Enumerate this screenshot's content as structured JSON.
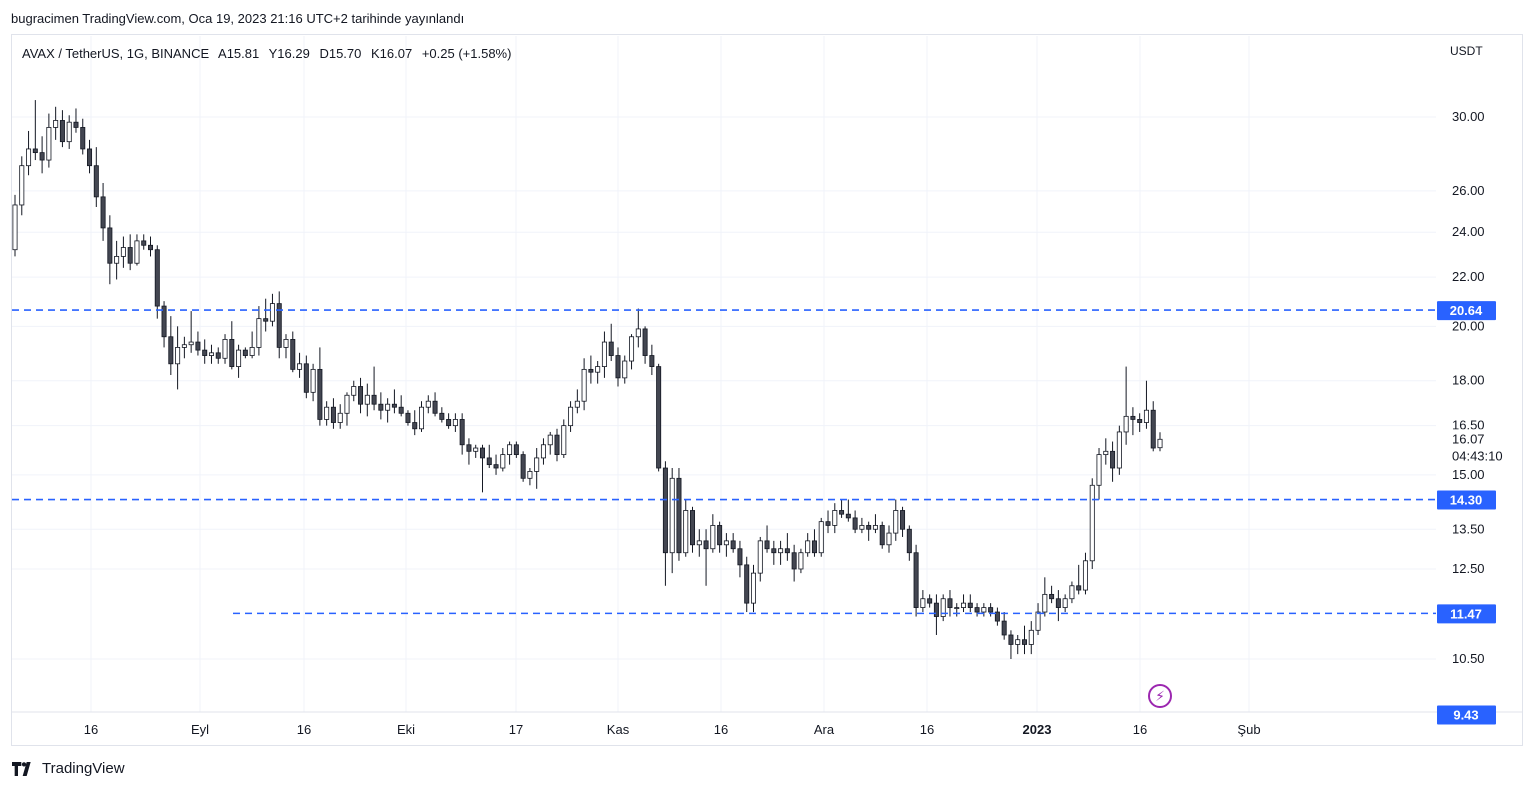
{
  "header": {
    "published": "bugracimen TradingView.com, Oca 19, 2023 21:16 UTC+2 tarihinde yayınlandı"
  },
  "legend": {
    "symbol": "AVAX / TetherUS, 1G, BINANCE",
    "open": "A15.81",
    "high": "Y16.29",
    "low": "D15.70",
    "close": "K16.07",
    "change": "+0.25 (+1.58%)"
  },
  "footer": {
    "brand": "TradingView"
  },
  "icons": {
    "logo": "tradingview-logo-icon",
    "flash": "lightning-bolt-icon"
  },
  "colors": {
    "level_line": "#2962ff",
    "level_badge": "#2962ff",
    "up_fill": "#ffffff",
    "down_fill": "#434651",
    "wick": "#131722"
  },
  "chart_data": {
    "type": "candlestick",
    "scale": "log",
    "currency": "USDT",
    "ylim": [
      9.2,
      33
    ],
    "y_ticks": [
      "30.00",
      "26.00",
      "24.00",
      "22.00",
      "20.00",
      "18.00",
      "16.50",
      "15.00",
      "13.50",
      "12.50",
      "10.50"
    ],
    "x_ticks": [
      "16",
      "Eyl",
      "16",
      "Eki",
      "17",
      "Kas",
      "16",
      "Ara",
      "16",
      "2023",
      "16",
      "Şub"
    ],
    "last_price": "16.07",
    "countdown": "04:43:10",
    "horizontal_levels": [
      {
        "value": 20.64,
        "label": "20.64"
      },
      {
        "value": 14.3,
        "label": "14.30"
      },
      {
        "value": 11.47,
        "label": "11.47"
      }
    ],
    "extra_badge": {
      "value": 9.43,
      "label": "9.43"
    },
    "candles": [
      {
        "o": 23.2,
        "h": 25.8,
        "l": 22.9,
        "c": 25.3
      },
      {
        "o": 25.3,
        "h": 27.8,
        "l": 24.8,
        "c": 27.3
      },
      {
        "o": 27.3,
        "h": 29.2,
        "l": 26.8,
        "c": 28.2
      },
      {
        "o": 28.2,
        "h": 31.0,
        "l": 27.6,
        "c": 28.0
      },
      {
        "o": 28.0,
        "h": 28.9,
        "l": 26.9,
        "c": 27.6
      },
      {
        "o": 27.6,
        "h": 30.2,
        "l": 27.2,
        "c": 29.4
      },
      {
        "o": 29.4,
        "h": 30.6,
        "l": 28.7,
        "c": 29.8
      },
      {
        "o": 29.8,
        "h": 30.4,
        "l": 28.3,
        "c": 28.6
      },
      {
        "o": 28.6,
        "h": 30.1,
        "l": 28.2,
        "c": 29.7
      },
      {
        "o": 29.7,
        "h": 30.5,
        "l": 29.1,
        "c": 29.4
      },
      {
        "o": 29.4,
        "h": 29.9,
        "l": 27.9,
        "c": 28.2
      },
      {
        "o": 28.2,
        "h": 28.7,
        "l": 26.9,
        "c": 27.3
      },
      {
        "o": 27.3,
        "h": 28.3,
        "l": 25.2,
        "c": 25.7
      },
      {
        "o": 25.7,
        "h": 26.4,
        "l": 23.6,
        "c": 24.2
      },
      {
        "o": 24.2,
        "h": 24.8,
        "l": 21.7,
        "c": 22.6
      },
      {
        "o": 22.6,
        "h": 23.6,
        "l": 21.9,
        "c": 22.9
      },
      {
        "o": 22.9,
        "h": 23.8,
        "l": 22.4,
        "c": 23.3
      },
      {
        "o": 23.3,
        "h": 23.9,
        "l": 22.3,
        "c": 22.6
      },
      {
        "o": 22.6,
        "h": 23.9,
        "l": 22.5,
        "c": 23.6
      },
      {
        "o": 23.6,
        "h": 23.9,
        "l": 23.2,
        "c": 23.4
      },
      {
        "o": 23.4,
        "h": 23.8,
        "l": 22.9,
        "c": 23.2
      },
      {
        "o": 23.2,
        "h": 23.4,
        "l": 20.3,
        "c": 20.8
      },
      {
        "o": 20.8,
        "h": 21.0,
        "l": 19.2,
        "c": 19.6
      },
      {
        "o": 19.6,
        "h": 20.4,
        "l": 18.2,
        "c": 18.6
      },
      {
        "o": 18.6,
        "h": 20.0,
        "l": 17.7,
        "c": 19.2
      },
      {
        "o": 19.2,
        "h": 19.6,
        "l": 18.8,
        "c": 19.3
      },
      {
        "o": 19.3,
        "h": 20.6,
        "l": 19.0,
        "c": 19.4
      },
      {
        "o": 19.4,
        "h": 19.8,
        "l": 18.9,
        "c": 19.1
      },
      {
        "o": 19.1,
        "h": 19.5,
        "l": 18.6,
        "c": 18.9
      },
      {
        "o": 18.9,
        "h": 19.3,
        "l": 18.6,
        "c": 19.0
      },
      {
        "o": 19.0,
        "h": 19.2,
        "l": 18.6,
        "c": 18.8
      },
      {
        "o": 18.8,
        "h": 19.7,
        "l": 18.6,
        "c": 19.5
      },
      {
        "o": 19.5,
        "h": 20.2,
        "l": 18.4,
        "c": 18.5
      },
      {
        "o": 18.5,
        "h": 19.3,
        "l": 18.1,
        "c": 19.1
      },
      {
        "o": 19.1,
        "h": 19.2,
        "l": 18.8,
        "c": 18.9
      },
      {
        "o": 18.9,
        "h": 19.8,
        "l": 18.8,
        "c": 19.2
      },
      {
        "o": 19.2,
        "h": 20.8,
        "l": 18.9,
        "c": 20.3
      },
      {
        "o": 20.3,
        "h": 21.1,
        "l": 19.8,
        "c": 20.2
      },
      {
        "o": 20.2,
        "h": 21.3,
        "l": 20.0,
        "c": 20.9
      },
      {
        "o": 20.9,
        "h": 21.4,
        "l": 18.8,
        "c": 19.2
      },
      {
        "o": 19.2,
        "h": 19.7,
        "l": 18.8,
        "c": 19.5
      },
      {
        "o": 19.5,
        "h": 19.8,
        "l": 18.3,
        "c": 18.4
      },
      {
        "o": 18.4,
        "h": 19.0,
        "l": 18.1,
        "c": 18.6
      },
      {
        "o": 18.6,
        "h": 18.9,
        "l": 17.4,
        "c": 17.6
      },
      {
        "o": 17.6,
        "h": 18.6,
        "l": 17.3,
        "c": 18.4
      },
      {
        "o": 18.4,
        "h": 19.2,
        "l": 16.5,
        "c": 16.7
      },
      {
        "o": 16.7,
        "h": 17.3,
        "l": 16.5,
        "c": 17.1
      },
      {
        "o": 17.1,
        "h": 17.4,
        "l": 16.4,
        "c": 16.6
      },
      {
        "o": 16.6,
        "h": 17.2,
        "l": 16.4,
        "c": 16.9
      },
      {
        "o": 16.9,
        "h": 17.6,
        "l": 16.5,
        "c": 17.5
      },
      {
        "o": 17.5,
        "h": 18.0,
        "l": 17.3,
        "c": 17.8
      },
      {
        "o": 17.8,
        "h": 18.1,
        "l": 16.9,
        "c": 17.2
      },
      {
        "o": 17.2,
        "h": 17.9,
        "l": 16.8,
        "c": 17.5
      },
      {
        "o": 17.5,
        "h": 18.5,
        "l": 17.0,
        "c": 17.2
      },
      {
        "o": 17.2,
        "h": 17.6,
        "l": 16.7,
        "c": 17.0
      },
      {
        "o": 17.0,
        "h": 17.4,
        "l": 16.6,
        "c": 17.2
      },
      {
        "o": 17.2,
        "h": 17.7,
        "l": 16.9,
        "c": 17.1
      },
      {
        "o": 17.1,
        "h": 17.5,
        "l": 16.8,
        "c": 16.9
      },
      {
        "o": 16.9,
        "h": 17.0,
        "l": 16.5,
        "c": 16.6
      },
      {
        "o": 16.6,
        "h": 17.0,
        "l": 16.2,
        "c": 16.4
      },
      {
        "o": 16.4,
        "h": 17.3,
        "l": 16.3,
        "c": 17.1
      },
      {
        "o": 17.1,
        "h": 17.5,
        "l": 16.9,
        "c": 17.3
      },
      {
        "o": 17.3,
        "h": 17.6,
        "l": 16.8,
        "c": 16.9
      },
      {
        "o": 16.9,
        "h": 17.1,
        "l": 16.6,
        "c": 16.7
      },
      {
        "o": 16.7,
        "h": 16.9,
        "l": 16.4,
        "c": 16.5
      },
      {
        "o": 16.5,
        "h": 16.9,
        "l": 16.3,
        "c": 16.7
      },
      {
        "o": 16.7,
        "h": 16.9,
        "l": 15.6,
        "c": 15.9
      },
      {
        "o": 15.9,
        "h": 16.1,
        "l": 15.3,
        "c": 15.7
      },
      {
        "o": 15.7,
        "h": 15.9,
        "l": 15.5,
        "c": 15.8
      },
      {
        "o": 15.8,
        "h": 15.9,
        "l": 14.5,
        "c": 15.5
      },
      {
        "o": 15.5,
        "h": 15.9,
        "l": 15.2,
        "c": 15.3
      },
      {
        "o": 15.3,
        "h": 15.6,
        "l": 15.0,
        "c": 15.2
      },
      {
        "o": 15.2,
        "h": 15.8,
        "l": 15.1,
        "c": 15.6
      },
      {
        "o": 15.6,
        "h": 16.0,
        "l": 15.3,
        "c": 15.9
      },
      {
        "o": 15.9,
        "h": 16.0,
        "l": 15.5,
        "c": 15.6
      },
      {
        "o": 15.6,
        "h": 15.7,
        "l": 14.8,
        "c": 14.9
      },
      {
        "o": 14.9,
        "h": 15.2,
        "l": 14.7,
        "c": 15.1
      },
      {
        "o": 15.1,
        "h": 15.8,
        "l": 14.6,
        "c": 15.5
      },
      {
        "o": 15.5,
        "h": 16.1,
        "l": 15.3,
        "c": 15.9
      },
      {
        "o": 15.9,
        "h": 16.3,
        "l": 15.6,
        "c": 16.2
      },
      {
        "o": 16.2,
        "h": 16.4,
        "l": 15.4,
        "c": 15.6
      },
      {
        "o": 15.6,
        "h": 16.7,
        "l": 15.5,
        "c": 16.5
      },
      {
        "o": 16.5,
        "h": 17.3,
        "l": 16.3,
        "c": 17.1
      },
      {
        "o": 17.1,
        "h": 17.7,
        "l": 16.9,
        "c": 17.3
      },
      {
        "o": 17.3,
        "h": 18.8,
        "l": 17.0,
        "c": 18.4
      },
      {
        "o": 18.4,
        "h": 18.9,
        "l": 17.9,
        "c": 18.3
      },
      {
        "o": 18.3,
        "h": 18.7,
        "l": 17.9,
        "c": 18.5
      },
      {
        "o": 18.5,
        "h": 19.8,
        "l": 18.1,
        "c": 19.4
      },
      {
        "o": 19.4,
        "h": 20.1,
        "l": 18.7,
        "c": 18.9
      },
      {
        "o": 18.9,
        "h": 19.2,
        "l": 17.8,
        "c": 18.1
      },
      {
        "o": 18.1,
        "h": 18.9,
        "l": 17.9,
        "c": 18.7
      },
      {
        "o": 18.7,
        "h": 19.7,
        "l": 18.4,
        "c": 19.6
      },
      {
        "o": 19.6,
        "h": 20.7,
        "l": 19.2,
        "c": 19.9
      },
      {
        "o": 19.9,
        "h": 20.0,
        "l": 18.6,
        "c": 18.9
      },
      {
        "o": 18.9,
        "h": 19.3,
        "l": 18.2,
        "c": 18.5
      },
      {
        "o": 18.5,
        "h": 18.6,
        "l": 15.1,
        "c": 15.2
      },
      {
        "o": 15.2,
        "h": 15.4,
        "l": 12.1,
        "c": 12.9
      },
      {
        "o": 12.9,
        "h": 15.2,
        "l": 12.4,
        "c": 14.9
      },
      {
        "o": 14.9,
        "h": 15.2,
        "l": 12.7,
        "c": 12.9
      },
      {
        "o": 12.9,
        "h": 14.3,
        "l": 12.8,
        "c": 14.0
      },
      {
        "o": 14.0,
        "h": 14.1,
        "l": 12.9,
        "c": 13.1
      },
      {
        "o": 13.1,
        "h": 13.5,
        "l": 12.8,
        "c": 13.2
      },
      {
        "o": 13.2,
        "h": 13.5,
        "l": 12.1,
        "c": 13.0
      },
      {
        "o": 13.0,
        "h": 13.9,
        "l": 12.9,
        "c": 13.6
      },
      {
        "o": 13.6,
        "h": 13.7,
        "l": 12.9,
        "c": 13.1
      },
      {
        "o": 13.1,
        "h": 13.4,
        "l": 12.8,
        "c": 13.2
      },
      {
        "o": 13.2,
        "h": 13.4,
        "l": 12.9,
        "c": 13.0
      },
      {
        "o": 13.0,
        "h": 13.2,
        "l": 12.3,
        "c": 12.6
      },
      {
        "o": 12.6,
        "h": 12.8,
        "l": 11.5,
        "c": 11.7
      },
      {
        "o": 11.7,
        "h": 12.6,
        "l": 11.5,
        "c": 12.4
      },
      {
        "o": 12.4,
        "h": 13.3,
        "l": 12.2,
        "c": 13.2
      },
      {
        "o": 13.2,
        "h": 13.6,
        "l": 12.9,
        "c": 13.0
      },
      {
        "o": 13.0,
        "h": 13.2,
        "l": 12.6,
        "c": 12.9
      },
      {
        "o": 12.9,
        "h": 13.2,
        "l": 12.6,
        "c": 13.0
      },
      {
        "o": 13.0,
        "h": 13.4,
        "l": 12.7,
        "c": 12.9
      },
      {
        "o": 12.9,
        "h": 13.1,
        "l": 12.2,
        "c": 12.5
      },
      {
        "o": 12.5,
        "h": 13.0,
        "l": 12.4,
        "c": 12.9
      },
      {
        "o": 12.9,
        "h": 13.4,
        "l": 12.8,
        "c": 13.2
      },
      {
        "o": 13.2,
        "h": 13.5,
        "l": 12.8,
        "c": 12.9
      },
      {
        "o": 12.9,
        "h": 13.8,
        "l": 12.8,
        "c": 13.7
      },
      {
        "o": 13.7,
        "h": 14.0,
        "l": 13.4,
        "c": 13.6
      },
      {
        "o": 13.6,
        "h": 14.2,
        "l": 13.4,
        "c": 14.0
      },
      {
        "o": 14.0,
        "h": 14.3,
        "l": 13.8,
        "c": 13.9
      },
      {
        "o": 13.9,
        "h": 14.3,
        "l": 13.7,
        "c": 13.8
      },
      {
        "o": 13.8,
        "h": 14.0,
        "l": 13.4,
        "c": 13.5
      },
      {
        "o": 13.5,
        "h": 13.8,
        "l": 13.4,
        "c": 13.6
      },
      {
        "o": 13.6,
        "h": 13.7,
        "l": 13.2,
        "c": 13.5
      },
      {
        "o": 13.5,
        "h": 13.9,
        "l": 13.4,
        "c": 13.6
      },
      {
        "o": 13.6,
        "h": 13.7,
        "l": 13.0,
        "c": 13.1
      },
      {
        "o": 13.1,
        "h": 13.6,
        "l": 12.9,
        "c": 13.4
      },
      {
        "o": 13.4,
        "h": 14.3,
        "l": 13.2,
        "c": 14.0
      },
      {
        "o": 14.0,
        "h": 14.1,
        "l": 13.3,
        "c": 13.5
      },
      {
        "o": 13.5,
        "h": 13.6,
        "l": 12.7,
        "c": 12.9
      },
      {
        "o": 12.9,
        "h": 13.1,
        "l": 11.4,
        "c": 11.6
      },
      {
        "o": 11.6,
        "h": 12.0,
        "l": 11.5,
        "c": 11.8
      },
      {
        "o": 11.8,
        "h": 11.9,
        "l": 11.6,
        "c": 11.7
      },
      {
        "o": 11.7,
        "h": 11.9,
        "l": 11.0,
        "c": 11.4
      },
      {
        "o": 11.4,
        "h": 11.9,
        "l": 11.3,
        "c": 11.8
      },
      {
        "o": 11.8,
        "h": 12.0,
        "l": 11.4,
        "c": 11.6
      },
      {
        "o": 11.6,
        "h": 11.7,
        "l": 11.4,
        "c": 11.6
      },
      {
        "o": 11.6,
        "h": 11.9,
        "l": 11.5,
        "c": 11.7
      },
      {
        "o": 11.7,
        "h": 11.9,
        "l": 11.5,
        "c": 11.6
      },
      {
        "o": 11.6,
        "h": 11.7,
        "l": 11.4,
        "c": 11.5
      },
      {
        "o": 11.5,
        "h": 11.7,
        "l": 11.4,
        "c": 11.6
      },
      {
        "o": 11.6,
        "h": 11.7,
        "l": 11.4,
        "c": 11.5
      },
      {
        "o": 11.5,
        "h": 11.6,
        "l": 11.2,
        "c": 11.3
      },
      {
        "o": 11.3,
        "h": 11.5,
        "l": 10.9,
        "c": 11.0
      },
      {
        "o": 11.0,
        "h": 11.1,
        "l": 10.5,
        "c": 10.8
      },
      {
        "o": 10.8,
        "h": 11.0,
        "l": 10.6,
        "c": 10.9
      },
      {
        "o": 10.9,
        "h": 11.2,
        "l": 10.6,
        "c": 10.8
      },
      {
        "o": 10.8,
        "h": 11.3,
        "l": 10.6,
        "c": 11.1
      },
      {
        "o": 11.1,
        "h": 11.7,
        "l": 11.0,
        "c": 11.5
      },
      {
        "o": 11.5,
        "h": 12.3,
        "l": 11.4,
        "c": 11.9
      },
      {
        "o": 11.9,
        "h": 12.1,
        "l": 11.7,
        "c": 11.8
      },
      {
        "o": 11.8,
        "h": 12.0,
        "l": 11.3,
        "c": 11.6
      },
      {
        "o": 11.6,
        "h": 11.9,
        "l": 11.5,
        "c": 11.8
      },
      {
        "o": 11.8,
        "h": 12.2,
        "l": 11.7,
        "c": 12.1
      },
      {
        "o": 12.1,
        "h": 12.6,
        "l": 11.9,
        "c": 12.0
      },
      {
        "o": 12.0,
        "h": 12.9,
        "l": 11.9,
        "c": 12.7
      },
      {
        "o": 12.7,
        "h": 14.9,
        "l": 12.5,
        "c": 14.7
      },
      {
        "o": 14.7,
        "h": 15.8,
        "l": 14.3,
        "c": 15.6
      },
      {
        "o": 15.6,
        "h": 16.1,
        "l": 15.3,
        "c": 15.7
      },
      {
        "o": 15.7,
        "h": 16.0,
        "l": 14.8,
        "c": 15.2
      },
      {
        "o": 15.2,
        "h": 16.5,
        "l": 15.0,
        "c": 16.3
      },
      {
        "o": 16.3,
        "h": 18.5,
        "l": 15.9,
        "c": 16.8
      },
      {
        "o": 16.8,
        "h": 17.1,
        "l": 16.2,
        "c": 16.7
      },
      {
        "o": 16.7,
        "h": 16.9,
        "l": 16.3,
        "c": 16.6
      },
      {
        "o": 16.6,
        "h": 18.0,
        "l": 16.4,
        "c": 17.0
      },
      {
        "o": 17.0,
        "h": 17.3,
        "l": 15.7,
        "c": 15.8
      },
      {
        "o": 15.81,
        "h": 16.29,
        "l": 15.7,
        "c": 16.07
      }
    ]
  }
}
